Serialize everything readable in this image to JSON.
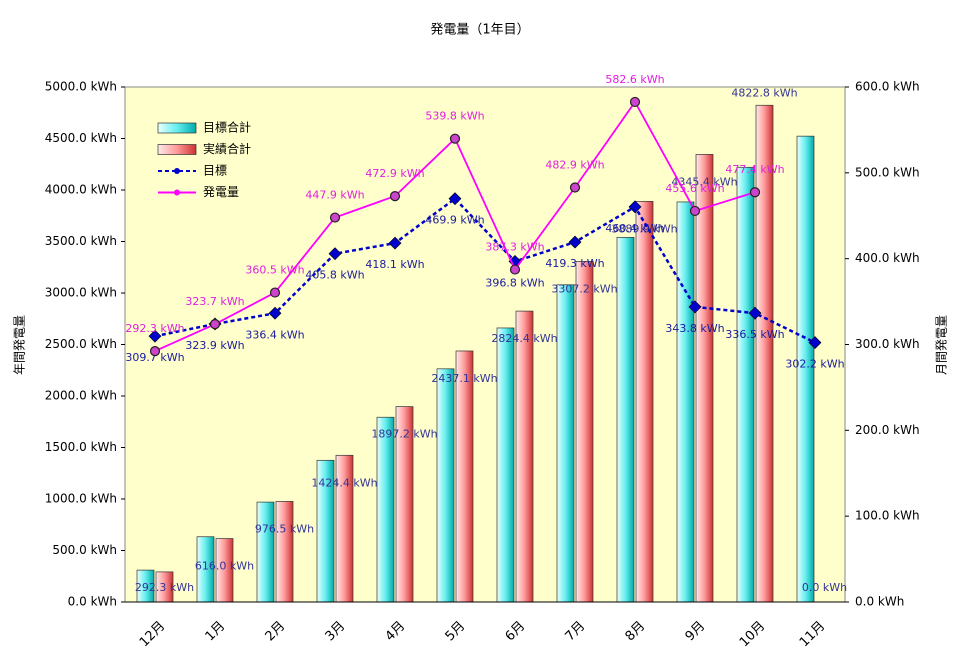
{
  "chart_data": {
    "type": "combo",
    "title": "発電量（1年目）",
    "ylabel": "年間発電量",
    "y2label": "月間発電量",
    "categories": [
      "12月",
      "1月",
      "2月",
      "3月",
      "4月",
      "5月",
      "6月",
      "7月",
      "8月",
      "9月",
      "10月",
      "11月"
    ],
    "ylim": [
      0,
      5000
    ],
    "yticks": [
      {
        "value": 0,
        "label": "0.0 kWh"
      },
      {
        "value": 500,
        "label": "500.0 kWh"
      },
      {
        "value": 1000,
        "label": "1000.0 kWh"
      },
      {
        "value": 1500,
        "label": "1500.0 kWh"
      },
      {
        "value": 2000,
        "label": "2000.0 kWh"
      },
      {
        "value": 2500,
        "label": "2500.0 kWh"
      },
      {
        "value": 3000,
        "label": "3000.0 kWh"
      },
      {
        "value": 3500,
        "label": "3500.0 kWh"
      },
      {
        "value": 4000,
        "label": "4000.0 kWh"
      },
      {
        "value": 4500,
        "label": "4500.0 kWh"
      },
      {
        "value": 5000,
        "label": "5000.0 kWh"
      }
    ],
    "y2lim": [
      0,
      600
    ],
    "y2ticks": [
      {
        "value": 0,
        "label": "0.0 kWh"
      },
      {
        "value": 100,
        "label": "100.0 kWh"
      },
      {
        "value": 200,
        "label": "200.0 kWh"
      },
      {
        "value": 300,
        "label": "300.0 kWh"
      },
      {
        "value": 400,
        "label": "400.0 kWh"
      },
      {
        "value": 500,
        "label": "500.0 kWh"
      },
      {
        "value": 600,
        "label": "600.0 kWh"
      }
    ],
    "series": [
      {
        "name": "目標合計",
        "type": "bar",
        "color": "#00cccc",
        "values": [
          309.7,
          633.6,
          970.0,
          1375.8,
          1793.9,
          2263.8,
          2660.6,
          3079.9,
          3540.3,
          3884.1,
          4220.6,
          4522.8
        ]
      },
      {
        "name": "実績合計",
        "type": "bar",
        "color": "#cc3333",
        "values": [
          292.3,
          616.0,
          976.5,
          1424.4,
          1897.2,
          2437.1,
          2824.4,
          3307.2,
          3889.9,
          4345.4,
          4822.8,
          0.0
        ],
        "value_labels": [
          "292.3 kWh",
          "616.0 kWh",
          "976.5 kWh",
          "1424.4 kWh",
          "1897.2 kWh",
          "2437.1 kWh",
          "2824.4 kWh",
          "3307.2 kWh",
          "3889.9 kWh",
          "4345.4 kWh",
          "4822.8 kWh",
          "0.0 kWh"
        ]
      },
      {
        "name": "目標",
        "type": "line",
        "axis": "y2",
        "color": "#0000cc",
        "values": [
          309.7,
          323.9,
          336.4,
          405.8,
          418.1,
          469.9,
          396.8,
          419.3,
          460.4,
          343.8,
          336.5,
          302.2
        ],
        "value_labels": [
          "309.7 kWh",
          "323.9 kWh",
          "336.4 kWh",
          "405.8 kWh",
          "418.1 kWh",
          "469.9 kWh",
          "396.8 kWh",
          "419.3 kWh",
          "460.4 kWh",
          "343.8 kWh",
          "336.5 kWh",
          "302.2 kWh"
        ]
      },
      {
        "name": "発電量",
        "type": "line",
        "axis": "y2",
        "color": "#ff00ff",
        "values": [
          292.3,
          323.7,
          360.5,
          447.9,
          472.9,
          539.8,
          387.3,
          482.9,
          582.6,
          455.6,
          477.4,
          null
        ],
        "value_labels": [
          "292.3 kWh",
          "323.7 kWh",
          "360.5 kWh",
          "447.9 kWh",
          "472.9 kWh",
          "539.8 kWh",
          "387.3 kWh",
          "482.9 kWh",
          "582.6 kWh",
          "455.6 kWh",
          "477.4 kWh",
          null
        ]
      }
    ]
  }
}
